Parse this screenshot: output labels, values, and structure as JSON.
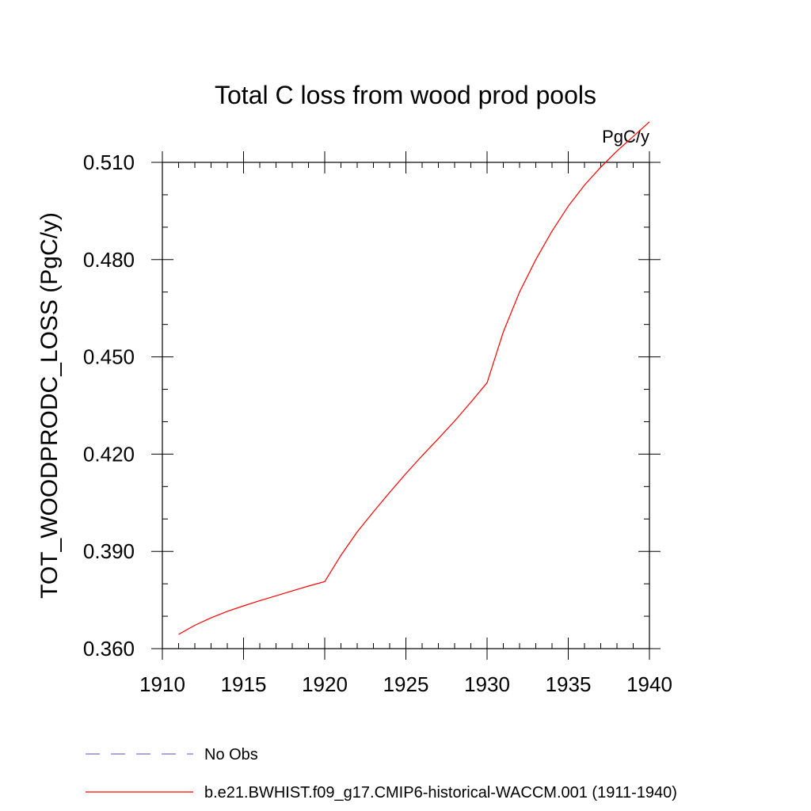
{
  "chart_data": {
    "type": "line",
    "title": "Total C loss from wood prod pools",
    "units_label": "PgC/y",
    "ylabel": "TOT_WOODPRODC_LOSS  (PgC/y)",
    "xlabel": "",
    "xlim": [
      1910,
      1940
    ],
    "ylim": [
      0.36,
      0.51
    ],
    "x_ticks": [
      "1910",
      "1915",
      "1920",
      "1925",
      "1930",
      "1935",
      "1940"
    ],
    "y_ticks": [
      "0.360",
      "0.390",
      "0.420",
      "0.450",
      "0.480",
      "0.510"
    ],
    "series": [
      {
        "name": "b.e21.BWHIST.f09_g17.CMIP6-historical-WACCM.001 (1911-1940)",
        "color": "#ff0000",
        "style": "solid",
        "x": [
          1911,
          1912,
          1913,
          1914,
          1915,
          1916,
          1917,
          1918,
          1919,
          1920,
          1921,
          1922,
          1923,
          1924,
          1925,
          1926,
          1927,
          1928,
          1929,
          1930,
          1931,
          1932,
          1933,
          1934,
          1935,
          1936,
          1937,
          1938,
          1939,
          1940
        ],
        "values": [
          0.3644,
          0.3672,
          0.3695,
          0.3715,
          0.3732,
          0.3748,
          0.3763,
          0.3778,
          0.3793,
          0.3807,
          0.3888,
          0.396,
          0.4022,
          0.4082,
          0.414,
          0.4195,
          0.4248,
          0.4302,
          0.436,
          0.442,
          0.4577,
          0.47,
          0.48,
          0.4888,
          0.4965,
          0.503,
          0.5085,
          0.5135,
          0.518,
          0.5225
        ]
      },
      {
        "name": "No Obs",
        "color": "#7a6fc4",
        "style": "dashed",
        "x": [],
        "values": []
      }
    ],
    "legend_position": "bottom-left",
    "grid": false
  }
}
